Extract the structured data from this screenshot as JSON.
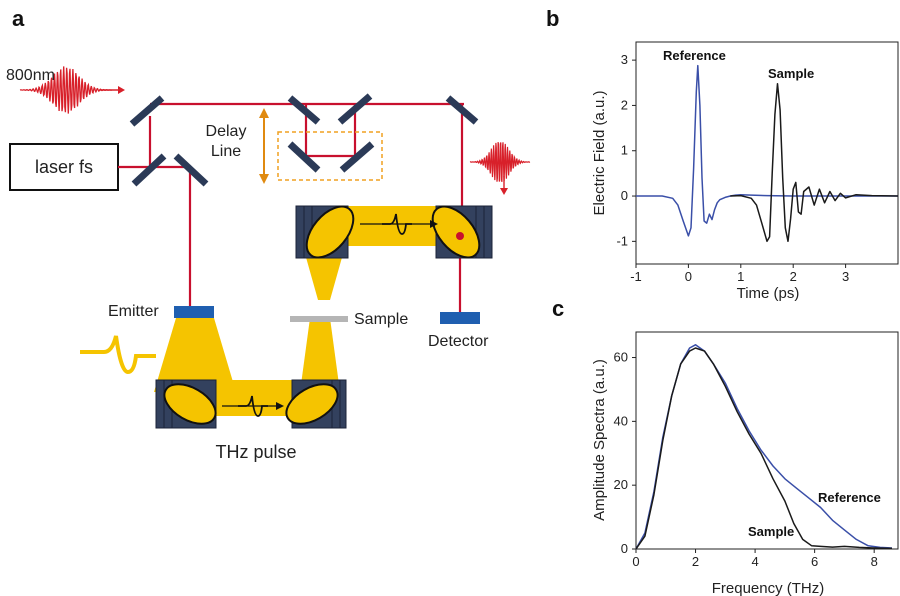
{
  "panels": {
    "a": "a",
    "b": "b",
    "c": "c"
  },
  "diagram": {
    "wavelength_label": "800nm",
    "laser_label": "laser fs",
    "delay_line_label": [
      "Delay",
      "Line"
    ],
    "emitter_label": "Emitter",
    "sample_label": "Sample",
    "detector_label": "Detector",
    "thz_pulse_label": "THz pulse",
    "colors": {
      "beam": "#c8102e",
      "thz": "#f5c400",
      "optics": "#2b3a57",
      "delay_box": "#f0a020"
    }
  },
  "chart_data": [
    {
      "type": "line",
      "panel": "b",
      "xlabel": "Time (ps)",
      "ylabel": "Electric Field (a.u.)",
      "xlim": [
        -1,
        4
      ],
      "ylim": [
        -1.5,
        3.4
      ],
      "xticks": [
        -1,
        0,
        1,
        2,
        3
      ],
      "yticks": [
        -1,
        0,
        1,
        2,
        3
      ],
      "annotations": [
        "Reference",
        "Sample"
      ],
      "series": [
        {
          "name": "Reference",
          "color": "#3a4fa8",
          "x": [
            -1.0,
            -0.5,
            -0.3,
            -0.2,
            -0.1,
            0.0,
            0.05,
            0.1,
            0.15,
            0.18,
            0.22,
            0.26,
            0.3,
            0.35,
            0.4,
            0.45,
            0.5,
            0.55,
            0.6,
            0.7,
            0.8,
            0.9,
            1.0,
            1.2,
            1.5,
            2.0,
            2.5,
            3.0,
            3.5,
            4.0
          ],
          "y": [
            0.0,
            0.0,
            -0.05,
            -0.2,
            -0.55,
            -0.88,
            -0.7,
            0.6,
            2.3,
            2.88,
            2.0,
            0.4,
            -0.55,
            -0.6,
            -0.4,
            -0.52,
            -0.3,
            -0.15,
            -0.08,
            -0.03,
            0.0,
            0.02,
            0.03,
            0.02,
            0.01,
            0.0,
            0.0,
            0.0,
            0.0,
            0.0
          ]
        },
        {
          "name": "Sample",
          "color": "#1a1a1a",
          "x": [
            0.8,
            1.0,
            1.2,
            1.3,
            1.4,
            1.5,
            1.55,
            1.6,
            1.65,
            1.7,
            1.75,
            1.8,
            1.85,
            1.9,
            1.95,
            2.0,
            2.05,
            2.1,
            2.15,
            2.2,
            2.3,
            2.4,
            2.5,
            2.6,
            2.7,
            2.8,
            2.9,
            3.0,
            3.2,
            3.5,
            4.0
          ],
          "y": [
            0.0,
            0.01,
            -0.05,
            -0.2,
            -0.6,
            -1.0,
            -0.9,
            0.5,
            1.8,
            2.48,
            1.9,
            0.4,
            -0.7,
            -1.0,
            -0.5,
            0.15,
            0.3,
            -0.35,
            -0.4,
            0.1,
            0.2,
            -0.2,
            0.15,
            -0.15,
            0.1,
            -0.1,
            0.06,
            -0.04,
            0.03,
            0.01,
            0.0
          ]
        }
      ]
    },
    {
      "type": "line",
      "panel": "c",
      "xlabel": "Frequency (THz)",
      "ylabel": "Amplitude Spectra (a.u.)",
      "xlim": [
        0,
        8.8
      ],
      "ylim": [
        0,
        68
      ],
      "xticks": [
        0,
        2,
        4,
        6,
        8
      ],
      "yticks": [
        0,
        20,
        40,
        60
      ],
      "annotations": [
        "Reference",
        "Sample"
      ],
      "series": [
        {
          "name": "Reference",
          "color": "#3a4fa8",
          "x": [
            0.0,
            0.3,
            0.6,
            0.9,
            1.2,
            1.5,
            1.8,
            2.0,
            2.3,
            2.6,
            3.0,
            3.4,
            3.8,
            4.2,
            4.6,
            5.0,
            5.4,
            5.8,
            6.2,
            6.6,
            7.0,
            7.4,
            7.8,
            8.2,
            8.6
          ],
          "y": [
            0.0,
            5,
            18,
            35,
            48,
            58,
            63,
            64,
            62,
            58,
            52,
            44,
            37,
            31,
            26,
            22,
            19,
            16,
            13,
            9,
            6,
            3,
            1,
            0.5,
            0.3
          ]
        },
        {
          "name": "Sample",
          "color": "#1a1a1a",
          "x": [
            0.0,
            0.3,
            0.6,
            0.9,
            1.2,
            1.5,
            1.8,
            2.0,
            2.3,
            2.6,
            3.0,
            3.4,
            3.8,
            4.2,
            4.6,
            5.0,
            5.3,
            5.6,
            5.9,
            6.2,
            6.6,
            7.0,
            7.5,
            8.0,
            8.6
          ],
          "y": [
            0.0,
            4,
            17,
            34,
            48,
            58,
            62,
            63,
            62,
            58,
            51,
            43,
            36,
            30,
            22,
            15,
            8,
            3,
            1,
            0.8,
            0.6,
            0.8,
            0.5,
            0.3,
            0.2
          ]
        }
      ]
    }
  ]
}
